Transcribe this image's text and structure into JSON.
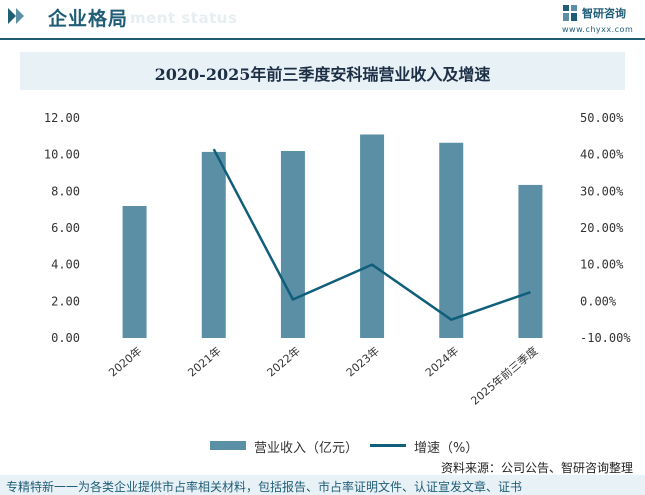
{
  "header": {
    "title": "企业格局",
    "ghost_text": "ment status",
    "brand_name": "智研咨询",
    "brand_url": "www.chyxx.com",
    "colors": {
      "primary": "#1f5d77",
      "band": "#e8f1f6"
    }
  },
  "chart_data": {
    "type": "bar+line",
    "title": "2020-2025年前三季度安科瑞营业收入及增速",
    "categories": [
      "2020年",
      "2021年",
      "2022年",
      "2023年",
      "2024年",
      "2025年前三季度"
    ],
    "series": [
      {
        "name": "营业收入（亿元）",
        "type": "bar",
        "axis": "left",
        "color": "#5b8fa6",
        "values": [
          7.2,
          10.15,
          10.2,
          11.1,
          10.65,
          8.35
        ]
      },
      {
        "name": "增速（%）",
        "type": "line",
        "axis": "right",
        "color": "#0f5e7a",
        "values": [
          null,
          41.5,
          0.5,
          10.0,
          -5.0,
          2.5
        ]
      }
    ],
    "y_left": {
      "min": 0,
      "max": 12,
      "step": 2,
      "ticks": [
        "0.00",
        "2.00",
        "4.00",
        "6.00",
        "8.00",
        "10.00",
        "12.00"
      ]
    },
    "y_right": {
      "min": -10,
      "max": 50,
      "step": 10,
      "ticks": [
        "-10.00%",
        "0.00%",
        "10.00%",
        "20.00%",
        "30.00%",
        "40.00%",
        "50.00%"
      ]
    },
    "grid": false,
    "legend_position": "bottom-center"
  },
  "legend": {
    "bar_label": "营业收入（亿元）",
    "line_label": "增速（%）"
  },
  "footer": {
    "source": "资料来源：公司公告、智研咨询整理",
    "tagline": "专精特新一一为各类企业提供市占率相关材料，包括报告、市占率证明文件、认证宣发文章、证书"
  }
}
